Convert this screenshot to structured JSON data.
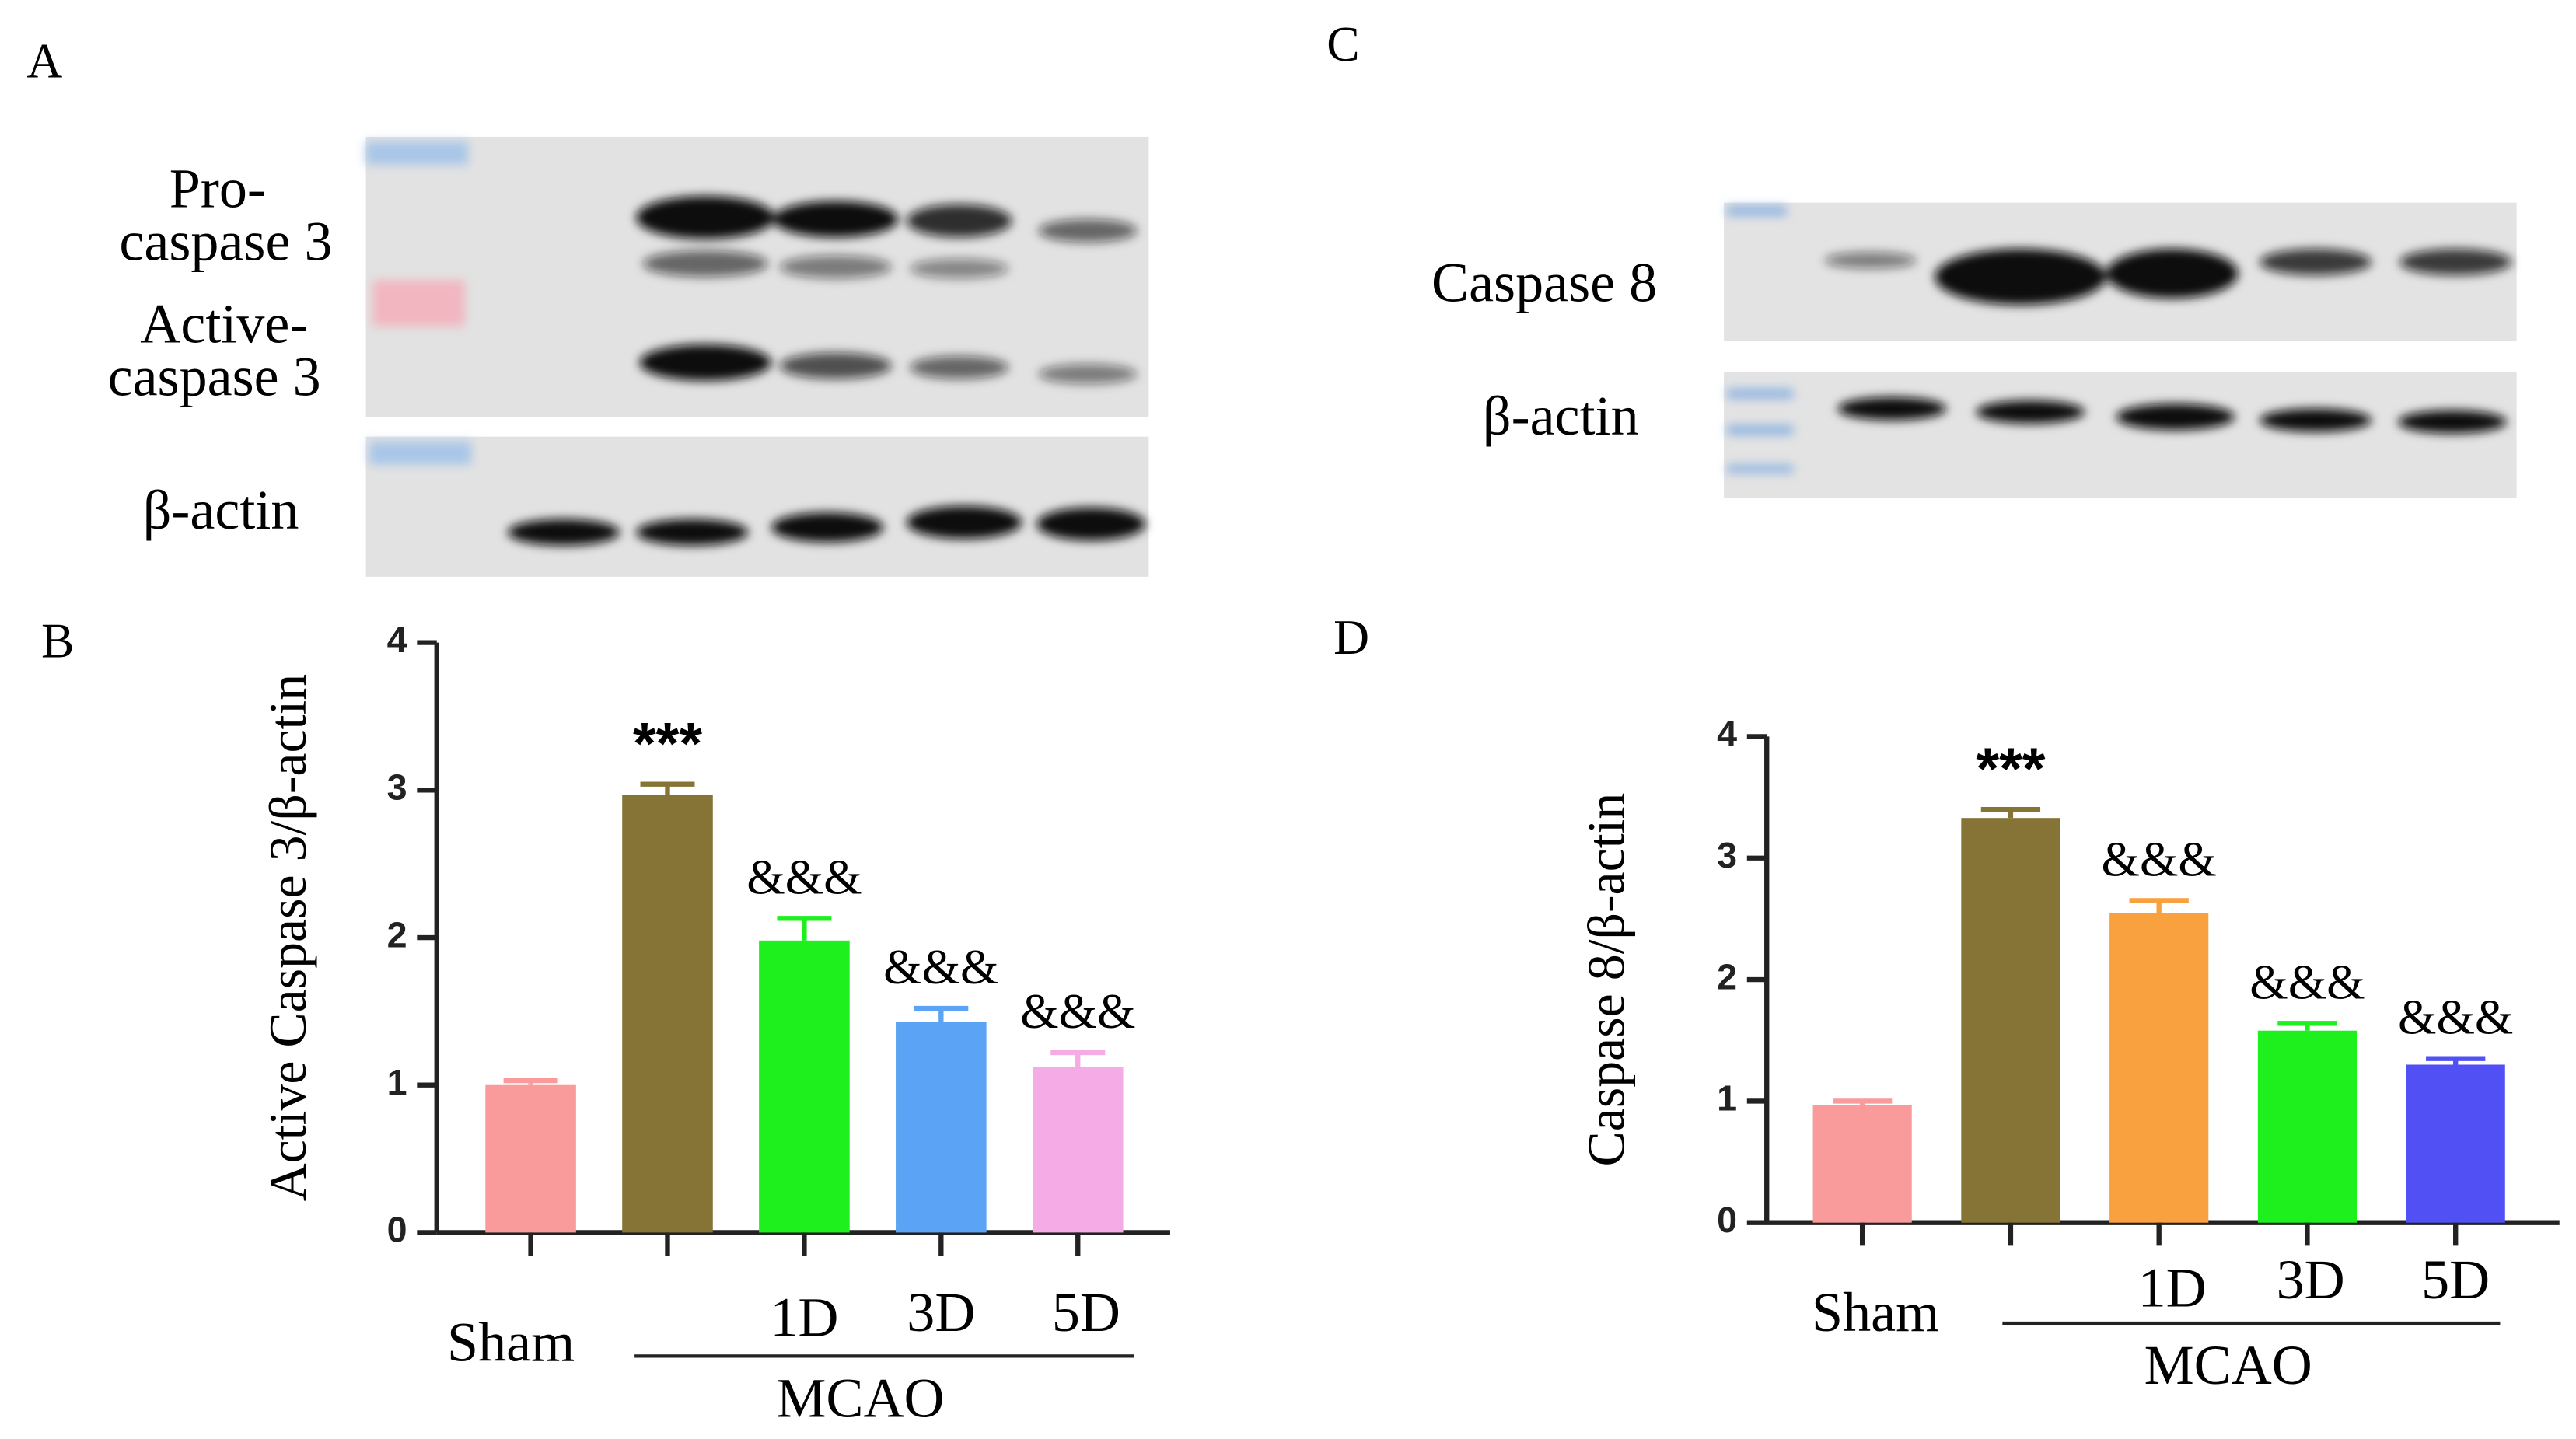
{
  "panels": [
    "A",
    "B",
    "C",
    "D"
  ],
  "blots": {
    "A": [
      "Pro-",
      "caspase 3",
      "Active-",
      "caspase 3",
      "β-actin"
    ],
    "C": [
      "Caspase 8",
      "β-actin"
    ]
  },
  "chart_data": [
    {
      "type": "bar",
      "ylabel": "Active Caspase 3/β-actin",
      "categories": [
        "Sham",
        null,
        "1D",
        "3D",
        "5D"
      ],
      "group_label": "MCAO",
      "values": [
        1.0,
        2.97,
        1.98,
        1.43,
        1.12
      ],
      "errors": [
        0.03,
        0.07,
        0.15,
        0.09,
        0.1
      ],
      "annotations": [
        null,
        "***",
        "&&&",
        "&&&",
        "&&&"
      ],
      "colors": [
        "#f99b9b",
        "#857436",
        "#1ef01e",
        "#5ba3f4",
        "#f4abe6"
      ],
      "ylim": [
        0,
        4
      ],
      "yticks": [
        0,
        1,
        2,
        3,
        4
      ]
    },
    {
      "type": "bar",
      "ylabel": "Caspase 8/β-actin",
      "categories": [
        "Sham",
        null,
        "1D",
        "3D",
        "5D"
      ],
      "group_label": "MCAO",
      "values": [
        0.97,
        3.33,
        2.55,
        1.58,
        1.3
      ],
      "errors": [
        0.03,
        0.07,
        0.1,
        0.06,
        0.05
      ],
      "annotations": [
        null,
        "***",
        "&&&",
        "&&&",
        "&&&"
      ],
      "colors": [
        "#f99b9b",
        "#857436",
        "#f9a13f",
        "#1ef01e",
        "#5050f4"
      ],
      "ylim": [
        0,
        4
      ],
      "yticks": [
        0,
        1,
        2,
        3,
        4
      ]
    }
  ]
}
